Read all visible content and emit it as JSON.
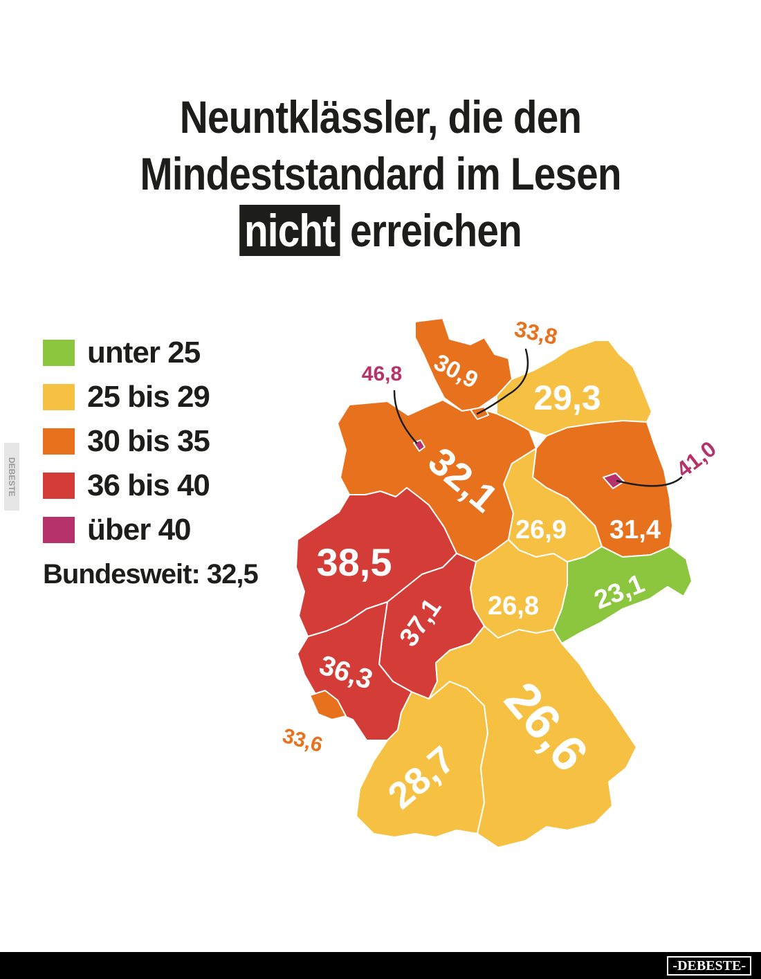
{
  "title": {
    "line1": "Neuntklässler, die den",
    "line2": "Mindeststandard im Lesen",
    "highlight": "nicht",
    "line3_rest": "erreichen"
  },
  "legend": [
    {
      "label": "unter 25",
      "color": "#8cc63f"
    },
    {
      "label": "25 bis 29",
      "color": "#f6c143"
    },
    {
      "label": "30 bis 35",
      "color": "#e8711d"
    },
    {
      "label": "36 bis 40",
      "color": "#d43c38"
    },
    {
      "label": "über 40",
      "color": "#b5336a"
    }
  ],
  "national": "Bundesweit: 32,5",
  "states": {
    "schleswig_holstein": "30,9",
    "hamburg": "33,8",
    "bremen": "46,8",
    "mecklenburg_vorpommern": "29,3",
    "niedersachsen": "32,1",
    "berlin": "41,0",
    "brandenburg": "31,4",
    "sachsen_anhalt": "26,9",
    "nordrhein_westfalen": "38,5",
    "sachsen": "23,1",
    "thueringen": "26,8",
    "hessen": "37,1",
    "rheinland_pfalz": "36,3",
    "saarland": "33,6",
    "baden_wuerttemberg": "28,7",
    "bayern": "26,6"
  },
  "colors": {
    "green": "#8cc63f",
    "yellow": "#f6c143",
    "orange": "#e8711d",
    "red": "#d43c38",
    "purple": "#b5336a",
    "text": "#1d1d1b"
  },
  "side_watermark": "DEBESTE",
  "watermark": "-DEBESTE-"
}
